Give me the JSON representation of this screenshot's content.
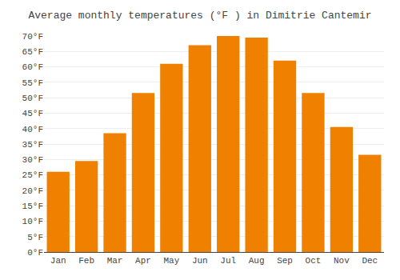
{
  "chart_data": {
    "type": "bar",
    "title": "Average monthly temperatures (°F ) in Dimitrie Cantemir",
    "categories": [
      "Jan",
      "Feb",
      "Mar",
      "Apr",
      "May",
      "Jun",
      "Jul",
      "Aug",
      "Sep",
      "Oct",
      "Nov",
      "Dec"
    ],
    "values": [
      26,
      29.5,
      38.5,
      51.5,
      61,
      67,
      70,
      69.5,
      62,
      51.5,
      40.5,
      31.5
    ],
    "color": "#F08000",
    "ylim": [
      0,
      70
    ],
    "yticks": [
      {
        "value": 0,
        "label": "0°F"
      },
      {
        "value": 5,
        "label": "5°F"
      },
      {
        "value": 10,
        "label": "10°F"
      },
      {
        "value": 15,
        "label": "15°F"
      },
      {
        "value": 20,
        "label": "20°F"
      },
      {
        "value": 25,
        "label": "25°F"
      },
      {
        "value": 30,
        "label": "30°F"
      },
      {
        "value": 35,
        "label": "35°F"
      },
      {
        "value": 40,
        "label": "40°F"
      },
      {
        "value": 45,
        "label": "45°F"
      },
      {
        "value": 50,
        "label": "50°F"
      },
      {
        "value": 55,
        "label": "55°F"
      },
      {
        "value": 60,
        "label": "60°F"
      },
      {
        "value": 65,
        "label": "65°F"
      },
      {
        "value": 70,
        "label": "70°F"
      }
    ],
    "grid": true
  }
}
